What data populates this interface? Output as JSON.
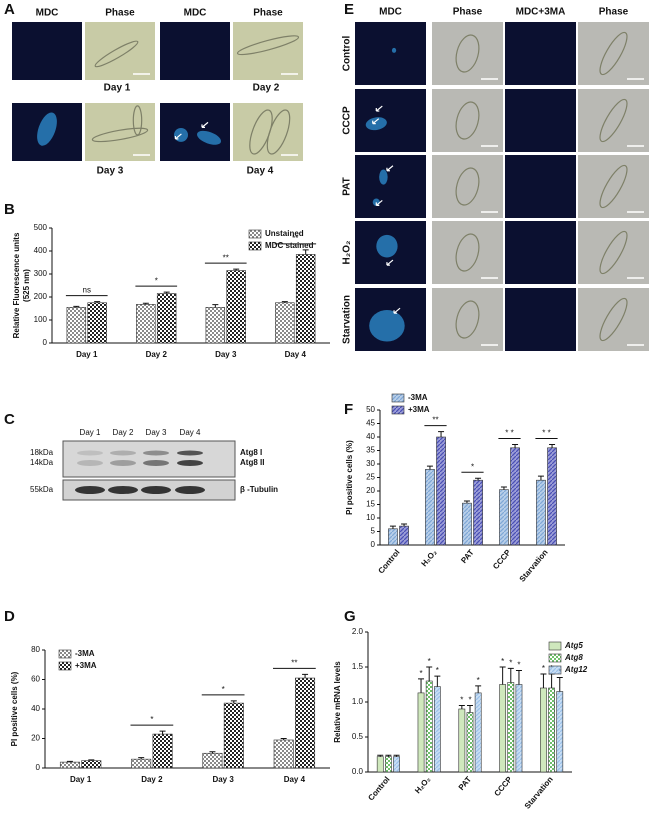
{
  "panel_labels": [
    "A",
    "B",
    "C",
    "D",
    "E",
    "F",
    "G"
  ],
  "panel_a": {
    "columns": [
      "MDC",
      "Phase",
      "MDC",
      "Phase"
    ],
    "days": [
      "Day 1",
      "Day 2",
      "Day 3",
      "Day 4"
    ]
  },
  "panel_c": {
    "lanes": [
      "Day 1",
      "Day 2",
      "Day 3",
      "Day 4"
    ],
    "markers": [
      "18kDa",
      "14kDa",
      "55kDa"
    ],
    "bands": [
      "Atg8 I",
      "Atg8 II",
      "β -Tubulin"
    ]
  },
  "panel_e": {
    "columns": [
      "MDC",
      "Phase",
      "MDC+3MA",
      "Phase"
    ],
    "rows": [
      "Control",
      "CCCP",
      "PAT",
      "H₂O₂",
      "Starvation"
    ]
  },
  "chart_data": [
    {
      "type": "bar",
      "ylabel": "Relative Fluorescence units",
      "ylabel_unit": "(525 nm)",
      "categories": [
        "Day 1",
        "Day 2",
        "Day 3",
        "Day 4"
      ],
      "series": [
        {
          "name": "Unstained",
          "color": "#8a8a8a",
          "pattern": "checker",
          "values": [
            155,
            168,
            155,
            175
          ],
          "errors": [
            4,
            5,
            12,
            5
          ]
        },
        {
          "name": "MDC stained",
          "color": "#222222",
          "pattern": "checker",
          "values": [
            175,
            215,
            315,
            385
          ],
          "errors": [
            5,
            6,
            6,
            20
          ]
        }
      ],
      "significance": [
        "ns",
        "*",
        "**",
        "**"
      ],
      "ylim": [
        0,
        500
      ],
      "yticks": [
        0,
        100,
        200,
        300,
        400,
        500
      ],
      "legend": "upper right",
      "rotate_labels": false
    },
    {
      "type": "bar",
      "ylabel": "PI positive cells (%)",
      "categories": [
        "Day 1",
        "Day 2",
        "Day 3",
        "Day 4"
      ],
      "series": [
        {
          "name": "-3MA",
          "color": "#8a8a8a",
          "pattern": "checker",
          "values": [
            4,
            6,
            10,
            19
          ],
          "errors": [
            0.5,
            1,
            1,
            1
          ]
        },
        {
          "name": "+3MA",
          "color": "#222222",
          "pattern": "checker",
          "values": [
            5,
            23,
            44,
            61
          ],
          "errors": [
            0.5,
            2,
            1.5,
            2.5
          ]
        }
      ],
      "significance": [
        null,
        "*",
        "*",
        "**"
      ],
      "ylim": [
        0,
        80
      ],
      "yticks": [
        0,
        20,
        40,
        60,
        80
      ],
      "legend": "upper left",
      "rotate_labels": false
    },
    {
      "type": "bar",
      "ylabel": "PI positive cells (%)",
      "categories": [
        "Control",
        "H₂O₂",
        "PAT",
        "CCCP",
        "Starvation"
      ],
      "series": [
        {
          "name": "-3MA",
          "color": "#7fa7d6",
          "pattern": "hatch",
          "values": [
            6,
            28,
            15.5,
            20.5,
            24
          ],
          "errors": [
            1,
            1.2,
            0.8,
            1,
            1.5
          ]
        },
        {
          "name": "+3MA",
          "color": "#4a4fb5",
          "pattern": "hatch",
          "values": [
            7,
            40,
            24,
            36,
            36
          ],
          "errors": [
            0.8,
            2,
            0.7,
            1.2,
            1.2
          ]
        }
      ],
      "significance": [
        null,
        "**",
        "*",
        "* *",
        "* *"
      ],
      "ylim": [
        0,
        50
      ],
      "yticks": [
        0,
        5,
        10,
        15,
        20,
        25,
        30,
        35,
        40,
        45,
        50
      ],
      "legend": "upper left",
      "rotate_labels": true
    },
    {
      "type": "bar",
      "ylabel": "Relative mRNA levels",
      "categories": [
        "Control",
        "H₂O₂",
        "PAT",
        "CCCP",
        "Starvation"
      ],
      "series": [
        {
          "name": "Atg5",
          "color": "#cfe8bd",
          "pattern": "solid",
          "values": [
            0.22,
            1.13,
            0.9,
            1.25,
            1.2
          ],
          "errors": [
            0.02,
            0.2,
            0.05,
            0.25,
            0.2
          ],
          "significance": [
            null,
            "*",
            "*",
            "*",
            "*"
          ]
        },
        {
          "name": "Atg8",
          "color": "#6fbf6c",
          "pattern": "checker",
          "values": [
            0.22,
            1.3,
            0.85,
            1.28,
            1.2
          ],
          "errors": [
            0.02,
            0.2,
            0.1,
            0.2,
            0.2
          ],
          "significance": [
            null,
            "*",
            "*",
            "*",
            "*"
          ]
        },
        {
          "name": "Atg12",
          "color": "#9cc2ea",
          "pattern": "hatch",
          "values": [
            0.22,
            1.22,
            1.13,
            1.25,
            1.15
          ],
          "errors": [
            0.02,
            0.15,
            0.1,
            0.2,
            0.2
          ],
          "significance": [
            null,
            "*",
            "*",
            "*",
            "*"
          ]
        }
      ],
      "ylim": [
        0,
        2
      ],
      "yticks": [
        {
          "value": 0,
          "label": "0.0"
        },
        0.5,
        {
          "value": 1,
          "label": "1.0"
        },
        1.5,
        {
          "value": 2,
          "label": "2.0"
        }
      ],
      "legend": "upper right",
      "rotate_labels": true,
      "italic_legend": true
    }
  ]
}
